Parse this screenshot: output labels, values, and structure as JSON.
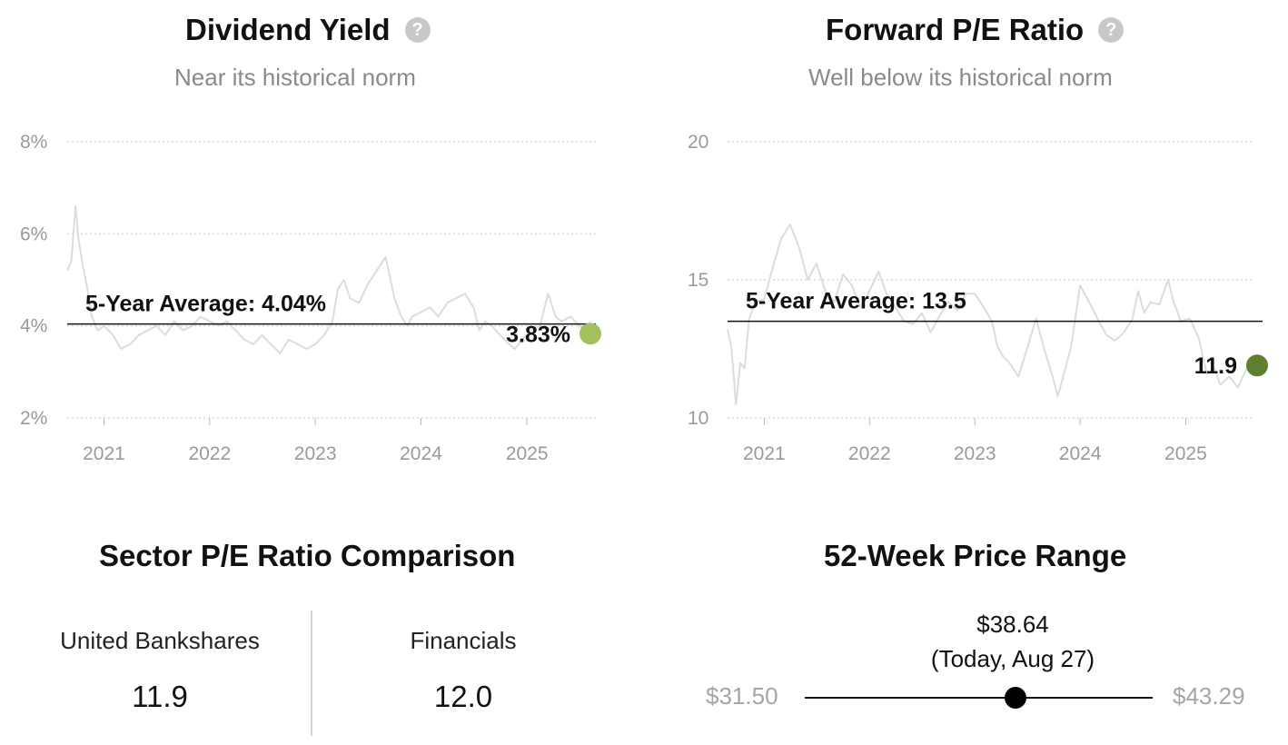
{
  "dividend": {
    "title": "Dividend Yield",
    "subtitle": "Near its historical norm"
  },
  "pe": {
    "title": "Forward P/E Ratio",
    "subtitle": "Well below its historical norm"
  },
  "help_icon": "?",
  "chart_data": [
    {
      "type": "line",
      "title": "Dividend Yield",
      "subtitle": "Near its historical norm",
      "y_unit": "%",
      "ylim": [
        2,
        8
      ],
      "yticks": [
        2,
        4,
        6,
        8
      ],
      "ytick_labels": [
        "2%",
        "4%",
        "6%",
        "8%"
      ],
      "xlim": [
        "2020-08-27",
        "2025-08-27"
      ],
      "xtick_labels": [
        "2021",
        "2022",
        "2023",
        "2024",
        "2025"
      ],
      "grid": true,
      "average": {
        "label": "5-Year Average: 4.04%",
        "value": 4.04
      },
      "current": {
        "label": "3.83%",
        "value": 3.83,
        "color": "#a4c05f"
      },
      "line_color": "#dcdcdc",
      "series": [
        {
          "x": [
            "2020-08-27",
            "2020-09-10",
            "2020-09-25",
            "2020-10-05",
            "2020-10-20",
            "2020-11-05",
            "2020-11-20",
            "2020-12-10",
            "2021-01-01",
            "2021-02-01",
            "2021-03-01",
            "2021-04-01",
            "2021-05-01",
            "2021-06-01",
            "2021-07-01",
            "2021-08-01",
            "2021-09-01",
            "2021-10-01",
            "2021-11-01",
            "2021-12-01",
            "2022-01-01",
            "2022-02-01",
            "2022-03-01",
            "2022-04-01",
            "2022-05-01",
            "2022-06-01",
            "2022-07-01",
            "2022-08-01",
            "2022-09-01",
            "2022-10-01",
            "2022-11-01",
            "2022-12-01",
            "2023-01-01",
            "2023-02-01",
            "2023-03-01",
            "2023-03-20",
            "2023-04-10",
            "2023-05-01",
            "2023-06-01",
            "2023-07-01",
            "2023-08-01",
            "2023-09-01",
            "2023-10-01",
            "2023-10-25",
            "2023-11-15",
            "2023-12-01",
            "2024-01-01",
            "2024-02-01",
            "2024-03-01",
            "2024-04-01",
            "2024-05-01",
            "2024-06-01",
            "2024-07-01",
            "2024-07-20",
            "2024-08-10",
            "2024-09-01",
            "2024-10-01",
            "2024-11-01",
            "2024-11-20",
            "2024-12-15",
            "2025-01-15",
            "2025-02-15",
            "2025-03-15",
            "2025-04-10",
            "2025-05-01",
            "2025-06-01",
            "2025-07-01",
            "2025-08-01",
            "2025-08-27"
          ],
          "y": [
            5.2,
            5.4,
            6.6,
            5.9,
            5.3,
            4.8,
            4.2,
            3.9,
            4.0,
            3.8,
            3.5,
            3.6,
            3.8,
            3.9,
            4.0,
            3.8,
            4.1,
            3.9,
            4.0,
            4.2,
            4.1,
            4.0,
            4.1,
            3.9,
            3.7,
            3.6,
            3.8,
            3.6,
            3.4,
            3.7,
            3.6,
            3.5,
            3.6,
            3.8,
            4.1,
            4.8,
            5.0,
            4.6,
            4.5,
            4.9,
            5.2,
            5.5,
            4.6,
            4.2,
            4.0,
            4.2,
            4.3,
            4.4,
            4.2,
            4.5,
            4.6,
            4.7,
            4.4,
            3.9,
            4.1,
            4.0,
            3.8,
            3.6,
            3.5,
            3.7,
            3.9,
            4.0,
            4.7,
            4.2,
            4.1,
            4.2,
            4.0,
            3.9,
            3.83
          ]
        }
      ]
    },
    {
      "type": "line",
      "title": "Forward P/E Ratio",
      "subtitle": "Well below its historical norm",
      "ylim": [
        10,
        20
      ],
      "yticks": [
        10,
        15,
        20
      ],
      "ytick_labels": [
        "10",
        "15",
        "20"
      ],
      "xlim": [
        "2020-08-27",
        "2025-08-27"
      ],
      "xtick_labels": [
        "2021",
        "2022",
        "2023",
        "2024",
        "2025"
      ],
      "grid": true,
      "average": {
        "label": "5-Year Average: 13.5",
        "value": 13.5
      },
      "current": {
        "label": "11.9",
        "value": 11.9,
        "color": "#5e7f2d"
      },
      "line_color": "#dcdcdc",
      "series": [
        {
          "x": [
            "2020-08-27",
            "2020-09-10",
            "2020-09-25",
            "2020-10-10",
            "2020-10-25",
            "2020-11-10",
            "2020-12-01",
            "2021-01-01",
            "2021-02-01",
            "2021-03-01",
            "2021-04-01",
            "2021-05-01",
            "2021-06-01",
            "2021-07-01",
            "2021-08-01",
            "2021-09-01",
            "2021-10-01",
            "2021-11-01",
            "2021-12-01",
            "2022-01-01",
            "2022-02-01",
            "2022-03-01",
            "2022-04-01",
            "2022-05-01",
            "2022-06-01",
            "2022-07-01",
            "2022-08-01",
            "2022-09-01",
            "2022-10-01",
            "2022-11-01",
            "2022-12-01",
            "2023-01-01",
            "2023-02-01",
            "2023-03-01",
            "2023-03-20",
            "2023-04-10",
            "2023-05-01",
            "2023-06-01",
            "2023-07-01",
            "2023-08-01",
            "2023-09-01",
            "2023-09-25",
            "2023-10-15",
            "2023-11-01",
            "2023-12-01",
            "2024-01-01",
            "2024-02-01",
            "2024-03-01",
            "2024-04-01",
            "2024-05-01",
            "2024-06-01",
            "2024-07-01",
            "2024-07-20",
            "2024-08-10",
            "2024-09-01",
            "2024-10-01",
            "2024-11-01",
            "2024-11-20",
            "2024-12-15",
            "2025-01-15",
            "2025-02-15",
            "2025-03-15",
            "2025-04-10",
            "2025-05-01",
            "2025-06-01",
            "2025-07-01",
            "2025-08-01",
            "2025-08-27"
          ],
          "y": [
            13.2,
            12.5,
            10.5,
            12.0,
            11.8,
            13.6,
            14.2,
            14.3,
            15.5,
            16.5,
            17.0,
            16.2,
            15.0,
            15.6,
            14.6,
            14.2,
            15.2,
            14.8,
            14.0,
            14.6,
            15.3,
            14.5,
            14.0,
            13.5,
            13.4,
            13.8,
            13.1,
            13.7,
            14.2,
            13.9,
            14.5,
            14.5,
            14.0,
            13.5,
            12.6,
            12.2,
            12.0,
            11.5,
            12.5,
            13.6,
            12.4,
            11.6,
            10.8,
            11.4,
            12.6,
            14.8,
            14.2,
            13.6,
            13.0,
            12.8,
            13.1,
            13.6,
            14.6,
            13.8,
            14.2,
            14.1,
            15.0,
            14.2,
            13.5,
            13.6,
            12.9,
            11.6,
            11.8,
            11.2,
            11.5,
            11.1,
            11.8,
            11.9
          ]
        }
      ]
    }
  ],
  "sector": {
    "title": "Sector P/E Ratio Comparison",
    "items": [
      {
        "name": "United Bankshares",
        "value": "11.9"
      },
      {
        "name": "Financials",
        "value": "12.0"
      }
    ]
  },
  "range": {
    "title": "52-Week Price Range",
    "current": "$38.64",
    "current_note": "(Today, Aug 27)",
    "low": "$31.50",
    "high": "$43.29",
    "low_value": 31.5,
    "high_value": 43.29,
    "current_value": 38.64
  }
}
